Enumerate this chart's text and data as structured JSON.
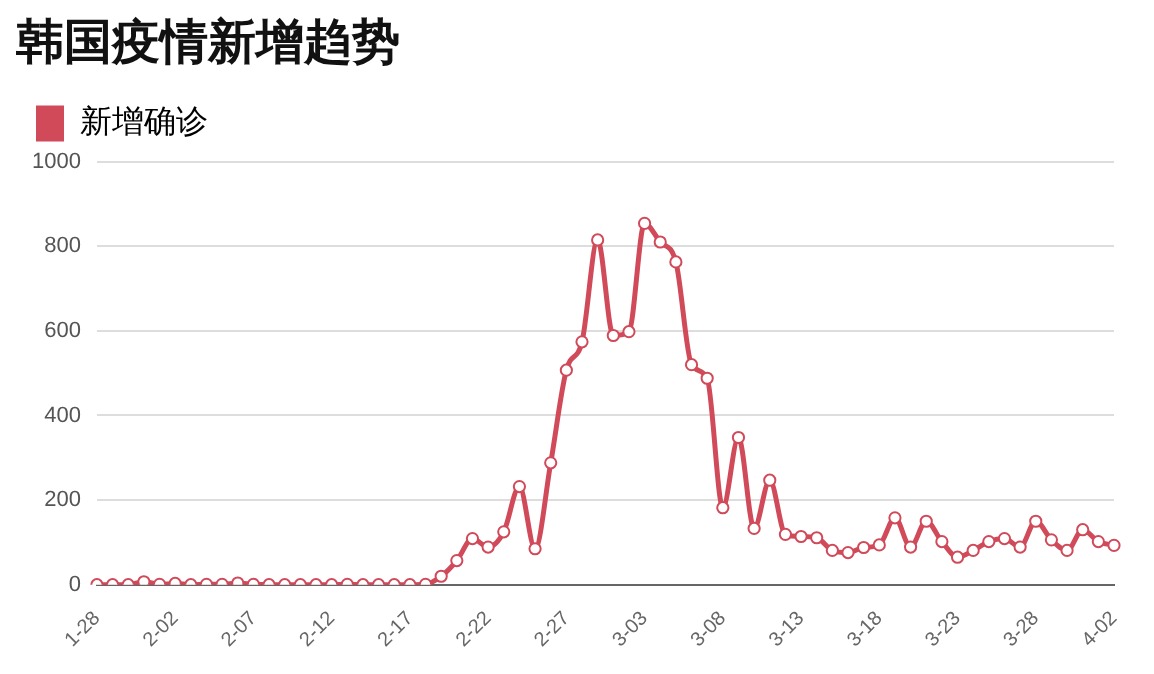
{
  "chart_data": {
    "type": "line",
    "title": "韩国疫情新增趋势",
    "categories": [
      "1-28",
      null,
      null,
      null,
      null,
      "2-02",
      null,
      null,
      null,
      null,
      "2-07",
      null,
      null,
      null,
      null,
      "2-12",
      null,
      null,
      null,
      null,
      "2-17",
      null,
      null,
      null,
      null,
      "2-22",
      null,
      null,
      null,
      null,
      "2-27",
      null,
      null,
      null,
      null,
      "3-03",
      null,
      null,
      null,
      null,
      "3-08",
      null,
      null,
      null,
      null,
      "3-13",
      null,
      null,
      null,
      null,
      "3-18",
      null,
      null,
      null,
      null,
      "3-23",
      null,
      null,
      null,
      null,
      "3-28",
      null,
      null,
      null,
      null,
      "4-02"
    ],
    "series": [
      {
        "name": "新增确诊",
        "color": "#d14a5a",
        "values": [
          0,
          0,
          0,
          7,
          1,
          3,
          0,
          1,
          1,
          4,
          1,
          0,
          0,
          0,
          0,
          0,
          1,
          0,
          0,
          0,
          0,
          1,
          20,
          57,
          109,
          89,
          125,
          232,
          85,
          288,
          507,
          574,
          815,
          589,
          598,
          854,
          810,
          763,
          520,
          488,
          182,
          348,
          133,
          247,
          119,
          114,
          111,
          81,
          76,
          88,
          94,
          158,
          89,
          150,
          102,
          65,
          81,
          102,
          109,
          89,
          150,
          106,
          81,
          130,
          102,
          93
        ]
      }
    ],
    "ylim": [
      0,
      1000
    ],
    "yticks": [
      0,
      200,
      400,
      600,
      800,
      1000
    ],
    "grid": "y",
    "legend": "top left",
    "marker": "circle",
    "line_style": "solid"
  }
}
